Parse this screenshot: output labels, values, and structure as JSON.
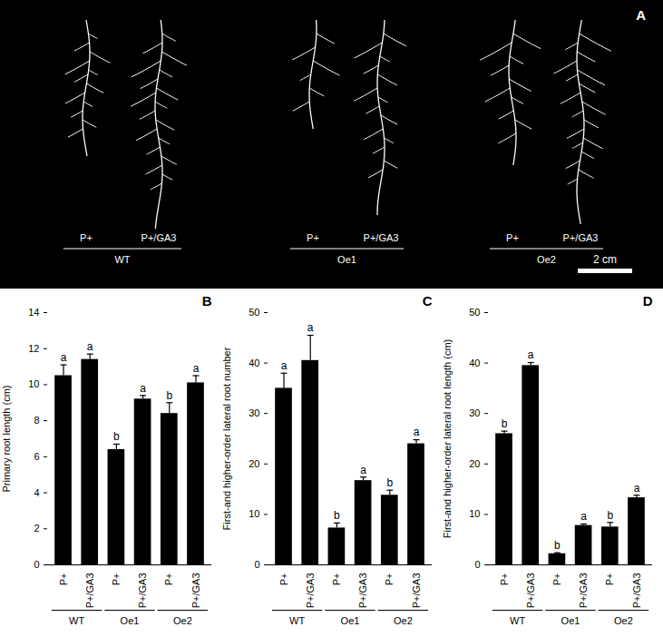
{
  "panel_a": {
    "label": "A",
    "groups": [
      "WT",
      "Oe1",
      "Oe2"
    ],
    "treatments": [
      "P+",
      "P+/GA3"
    ],
    "scale_bar": "2 cm"
  },
  "chart_data": [
    {
      "type": "bar",
      "title": "B",
      "y_label": "Primary root length (cm)",
      "categories": [
        "P+",
        "P+/GA3",
        "P+",
        "P+/GA3",
        "P+",
        "P+/GA3"
      ],
      "groups": [
        "WT",
        "Oe1",
        "Oe2"
      ],
      "values": [
        10.5,
        11.4,
        6.4,
        9.2,
        8.4,
        10.1
      ],
      "errors": [
        0.6,
        0.3,
        0.3,
        0.2,
        0.6,
        0.4
      ],
      "letters": [
        "a",
        "a",
        "b",
        "a",
        "b",
        "a"
      ],
      "color": "#000000",
      "ylim": [
        0,
        14
      ],
      "yticks": [
        0,
        2,
        4,
        6,
        8,
        10,
        12,
        14
      ],
      "grid": false
    },
    {
      "type": "bar",
      "title": "C",
      "y_label": "First-and higher-order lateral root number",
      "categories": [
        "P+",
        "P+/GA3",
        "P+",
        "P+/GA3",
        "P+",
        "P+/GA3"
      ],
      "groups": [
        "WT",
        "Oe1",
        "Oe2"
      ],
      "values": [
        35,
        40.5,
        7.3,
        16.7,
        13.8,
        24
      ],
      "errors": [
        3,
        5,
        1,
        0.7,
        1,
        0.8
      ],
      "letters": [
        "a",
        "a",
        "b",
        "a",
        "b",
        "a"
      ],
      "color": "#000000",
      "ylim": [
        0,
        50
      ],
      "yticks": [
        0,
        10,
        20,
        30,
        40,
        50
      ],
      "grid": false
    },
    {
      "type": "bar",
      "title": "D",
      "y_label": "First-and higher-order lateral root length (cm)",
      "categories": [
        "P+",
        "P+/GA3",
        "P+",
        "P+/GA3",
        "P+",
        "P+/GA3"
      ],
      "groups": [
        "WT",
        "Oe1",
        "Oe2"
      ],
      "values": [
        26,
        39.5,
        2.2,
        7.8,
        7.5,
        13.3
      ],
      "errors": [
        0.5,
        0.6,
        0.2,
        0.3,
        0.9,
        0.5
      ],
      "letters": [
        "b",
        "a",
        "b",
        "a",
        "b",
        "a"
      ],
      "color": "#000000",
      "ylim": [
        0,
        50
      ],
      "yticks": [
        0,
        10,
        20,
        30,
        40,
        50
      ],
      "grid": false
    }
  ]
}
